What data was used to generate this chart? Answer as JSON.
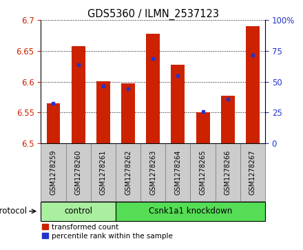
{
  "title": "GDS5360 / ILMN_2537123",
  "samples": [
    "GSM1278259",
    "GSM1278260",
    "GSM1278261",
    "GSM1278262",
    "GSM1278263",
    "GSM1278264",
    "GSM1278265",
    "GSM1278266",
    "GSM1278267"
  ],
  "red_values": [
    6.565,
    6.658,
    6.601,
    6.597,
    6.678,
    6.627,
    6.55,
    6.577,
    6.69
  ],
  "blue_values": [
    6.565,
    6.628,
    6.593,
    6.588,
    6.638,
    6.61,
    6.552,
    6.572,
    6.643
  ],
  "ylim_left": [
    6.5,
    6.7
  ],
  "ylim_right": [
    0,
    100
  ],
  "yticks_left": [
    6.5,
    6.55,
    6.6,
    6.65,
    6.7
  ],
  "yticks_right": [
    0,
    25,
    50,
    75,
    100
  ],
  "ytick_labels_right": [
    "0",
    "25",
    "50",
    "75",
    "100%"
  ],
  "bar_color": "#cc2200",
  "blue_color": "#2233cc",
  "bar_width": 0.55,
  "groups": [
    {
      "label": "control",
      "start": 0,
      "end": 3,
      "color": "#aaeea0"
    },
    {
      "label": "Csnk1a1 knockdown",
      "start": 3,
      "end": 9,
      "color": "#55dd55"
    }
  ],
  "protocol_label": "protocol",
  "legend_red": "transformed count",
  "legend_blue": "percentile rank within the sample",
  "tick_label_color_left": "#cc2200",
  "tick_label_color_right": "#2233cc",
  "label_box_color": "#cccccc",
  "label_box_edge": "#888888"
}
